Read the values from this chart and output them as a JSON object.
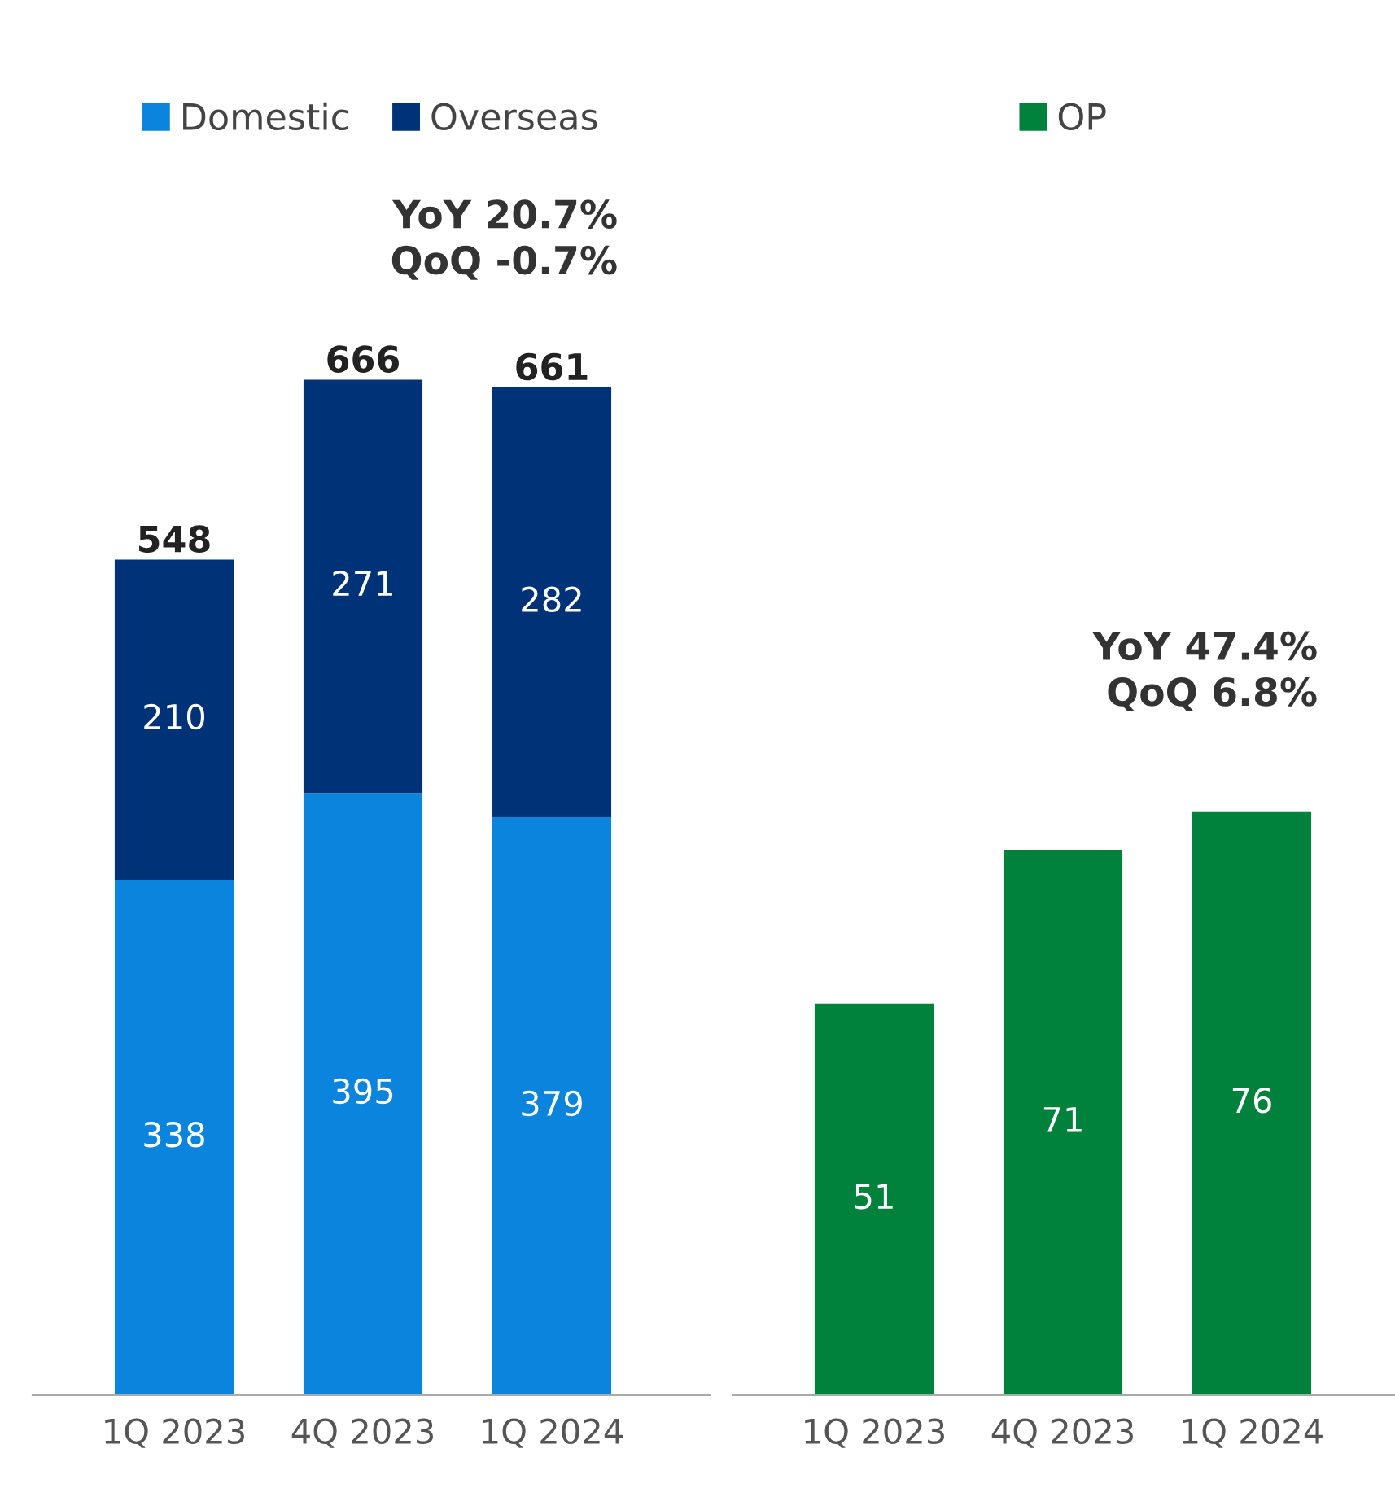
{
  "chart_data": [
    {
      "type": "bar",
      "stacked": true,
      "data_labels": true,
      "legend": "top",
      "grid": false,
      "tick_labels": "x",
      "categories": [
        "1Q 2023",
        "4Q 2023",
        "1Q 2024"
      ],
      "series": [
        {
          "name": "Domestic",
          "color": "#0a84dc",
          "values": [
            338,
            395,
            379
          ]
        },
        {
          "name": "Overseas",
          "color": "#003278",
          "values": [
            210,
            271,
            282
          ]
        }
      ],
      "totals": [
        "548",
        "666",
        "661"
      ],
      "annotations": [
        "YoY 20.7%\nQoQ -0.7%"
      ]
    },
    {
      "type": "bar",
      "data_labels": true,
      "legend": "top",
      "grid": false,
      "tick_labels": "x",
      "categories": [
        "1Q 2023",
        "4Q 2023",
        "1Q 2024"
      ],
      "series": [
        {
          "name": "OP",
          "color": "#00823c",
          "values": [
            51,
            71,
            76
          ]
        }
      ],
      "annotations": [
        "YoY 47.4%\nQoQ 6.8%"
      ]
    }
  ]
}
